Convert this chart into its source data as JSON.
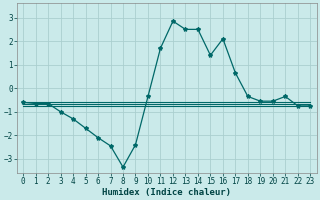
{
  "title": "",
  "xlabel": "Humidex (Indice chaleur)",
  "ylabel": "",
  "background_color": "#caeaea",
  "grid_color": "#aacfcf",
  "line_color": "#006868",
  "xlim": [
    -0.5,
    23.5
  ],
  "ylim": [
    -3.6,
    3.6
  ],
  "xticks": [
    0,
    1,
    2,
    3,
    4,
    5,
    6,
    7,
    8,
    9,
    10,
    11,
    12,
    13,
    14,
    15,
    16,
    17,
    18,
    19,
    20,
    21,
    22,
    23
  ],
  "yticks": [
    -3,
    -2,
    -1,
    0,
    1,
    2,
    3
  ],
  "series": [
    [
      0,
      -0.6
    ],
    [
      1,
      -0.65
    ],
    [
      2,
      -0.65
    ],
    [
      3,
      -1.0
    ],
    [
      4,
      -1.3
    ],
    [
      5,
      -1.7
    ],
    [
      6,
      -2.1
    ],
    [
      7,
      -2.45
    ],
    [
      8,
      -3.35
    ],
    [
      9,
      -2.4
    ],
    [
      10,
      -0.35
    ],
    [
      11,
      1.7
    ],
    [
      12,
      2.85
    ],
    [
      13,
      2.5
    ],
    [
      14,
      2.5
    ],
    [
      15,
      1.4
    ],
    [
      16,
      2.1
    ],
    [
      17,
      0.65
    ],
    [
      18,
      -0.35
    ],
    [
      19,
      -0.55
    ],
    [
      20,
      -0.55
    ],
    [
      21,
      -0.35
    ],
    [
      22,
      -0.75
    ],
    [
      23,
      -0.75
    ]
  ],
  "flat_line1": {
    "x_start": 0,
    "x_end": 23,
    "y": -0.6
  },
  "flat_line2": {
    "x_start": 0,
    "x_end": 23,
    "y": -0.68
  },
  "flat_line3": {
    "x_start": 0,
    "x_end": 23,
    "y": -0.76
  }
}
